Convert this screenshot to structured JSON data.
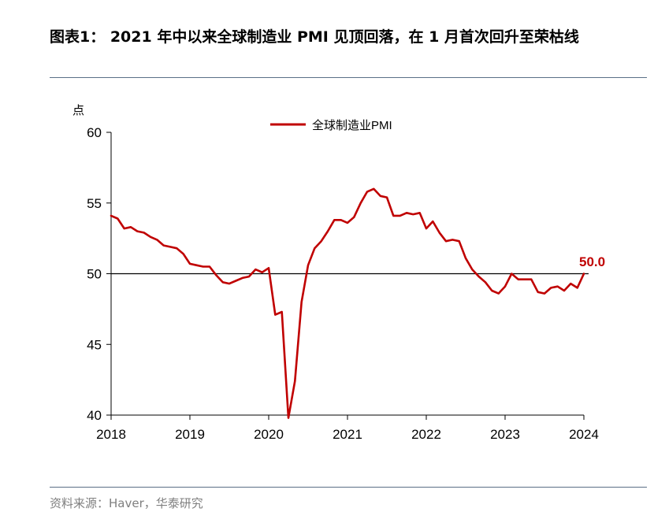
{
  "title": "图表1： 2021 年中以来全球制造业 PMI 见顶回落，在 1 月首次回升至荣枯线",
  "source": "资料来源：Haver，华泰研究",
  "chart_data": {
    "type": "line",
    "title": "",
    "ylabel": "点",
    "xlabel": "",
    "ylim": [
      40,
      60
    ],
    "yticks": [
      40,
      45,
      50,
      55,
      60
    ],
    "xlim": [
      "2018-01",
      "2024-01"
    ],
    "xticks": [
      "2018",
      "2019",
      "2020",
      "2021",
      "2022",
      "2023",
      "2024"
    ],
    "reference_line": 50,
    "legend_position": "top-center",
    "last_value_label": "50.0",
    "colors": {
      "series": "#c00000",
      "label": "#c00000",
      "axis": "#000000"
    },
    "series": [
      {
        "name": "全球制造业PMI",
        "x": [
          "2018-01",
          "2018-02",
          "2018-03",
          "2018-04",
          "2018-05",
          "2018-06",
          "2018-07",
          "2018-08",
          "2018-09",
          "2018-10",
          "2018-11",
          "2018-12",
          "2019-01",
          "2019-02",
          "2019-03",
          "2019-04",
          "2019-05",
          "2019-06",
          "2019-07",
          "2019-08",
          "2019-09",
          "2019-10",
          "2019-11",
          "2019-12",
          "2020-01",
          "2020-02",
          "2020-03",
          "2020-04",
          "2020-05",
          "2020-06",
          "2020-07",
          "2020-08",
          "2020-09",
          "2020-10",
          "2020-11",
          "2020-12",
          "2021-01",
          "2021-02",
          "2021-03",
          "2021-04",
          "2021-05",
          "2021-06",
          "2021-07",
          "2021-08",
          "2021-09",
          "2021-10",
          "2021-11",
          "2021-12",
          "2022-01",
          "2022-02",
          "2022-03",
          "2022-04",
          "2022-05",
          "2022-06",
          "2022-07",
          "2022-08",
          "2022-09",
          "2022-10",
          "2022-11",
          "2022-12",
          "2023-01",
          "2023-02",
          "2023-03",
          "2023-04",
          "2023-05",
          "2023-06",
          "2023-07",
          "2023-08",
          "2023-09",
          "2023-10",
          "2023-11",
          "2023-12",
          "2024-01"
        ],
        "values": [
          54.1,
          53.9,
          53.2,
          53.3,
          53.0,
          52.9,
          52.6,
          52.4,
          52.0,
          51.9,
          51.8,
          51.4,
          50.7,
          50.6,
          50.5,
          50.5,
          49.9,
          49.4,
          49.3,
          49.5,
          49.7,
          49.8,
          50.3,
          50.1,
          50.4,
          47.1,
          47.3,
          39.8,
          42.4,
          48.0,
          50.6,
          51.8,
          52.3,
          53.0,
          53.8,
          53.8,
          53.6,
          54.0,
          55.0,
          55.8,
          56.0,
          55.5,
          55.4,
          54.1,
          54.1,
          54.3,
          54.2,
          54.3,
          53.2,
          53.7,
          52.9,
          52.3,
          52.4,
          52.3,
          51.1,
          50.3,
          49.8,
          49.4,
          48.8,
          48.6,
          49.1,
          50.0,
          49.6,
          49.6,
          49.6,
          48.7,
          48.6,
          49.0,
          49.1,
          48.8,
          49.3,
          49.0,
          50.0
        ]
      }
    ]
  }
}
